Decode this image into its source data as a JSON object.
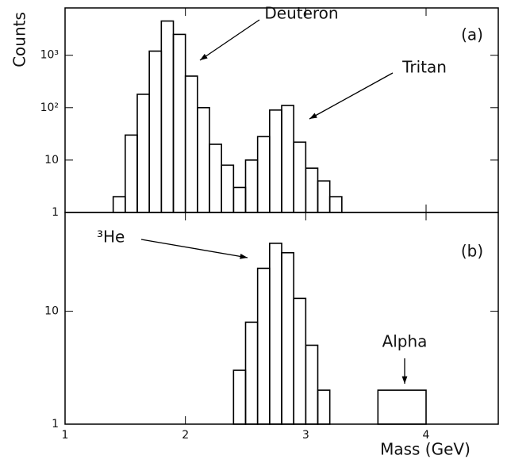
{
  "chart_data": [
    {
      "type": "histogram",
      "ylabel": "Counts",
      "log_y": true,
      "bins": [
        1.4,
        1.5,
        1.6,
        1.7,
        1.8,
        1.9,
        2.0,
        2.1,
        2.2,
        2.3,
        2.4,
        2.5,
        2.6,
        2.7,
        2.8,
        2.9,
        3.0,
        3.1,
        3.2,
        3.3
      ],
      "values": [
        2,
        30,
        180,
        1200,
        4500,
        2500,
        400,
        100,
        20,
        8,
        3,
        10,
        28,
        90,
        110,
        22,
        7,
        4,
        2
      ],
      "color": "#000000",
      "xlim": [
        1,
        4.6
      ],
      "xticks": [
        1,
        2,
        3,
        4
      ],
      "ylim": [
        1,
        8000
      ],
      "yticks": [
        1,
        10,
        {
          "value": 100,
          "label": "10²"
        },
        {
          "value": 1000,
          "label": "10³"
        }
      ],
      "annotations": [
        "Deuteron",
        "Tritan",
        "(a)"
      ]
    },
    {
      "type": "histogram",
      "xlabel": "Mass (GeV)",
      "log_y": true,
      "bins": [
        2.4,
        2.5,
        2.6,
        2.7,
        2.8,
        2.9,
        3.0,
        3.1,
        3.2,
        3.6,
        4.0
      ],
      "values": [
        3,
        8,
        24,
        40,
        33,
        13,
        5,
        2,
        null,
        2
      ],
      "color": "#000000",
      "xlim": [
        1,
        4.6
      ],
      "xticks": [
        1,
        2,
        3,
        4
      ],
      "ylim": [
        1,
        75
      ],
      "yticks": [
        1,
        10
      ],
      "annotations": [
        "³He",
        "Alpha",
        "(b)"
      ]
    }
  ]
}
